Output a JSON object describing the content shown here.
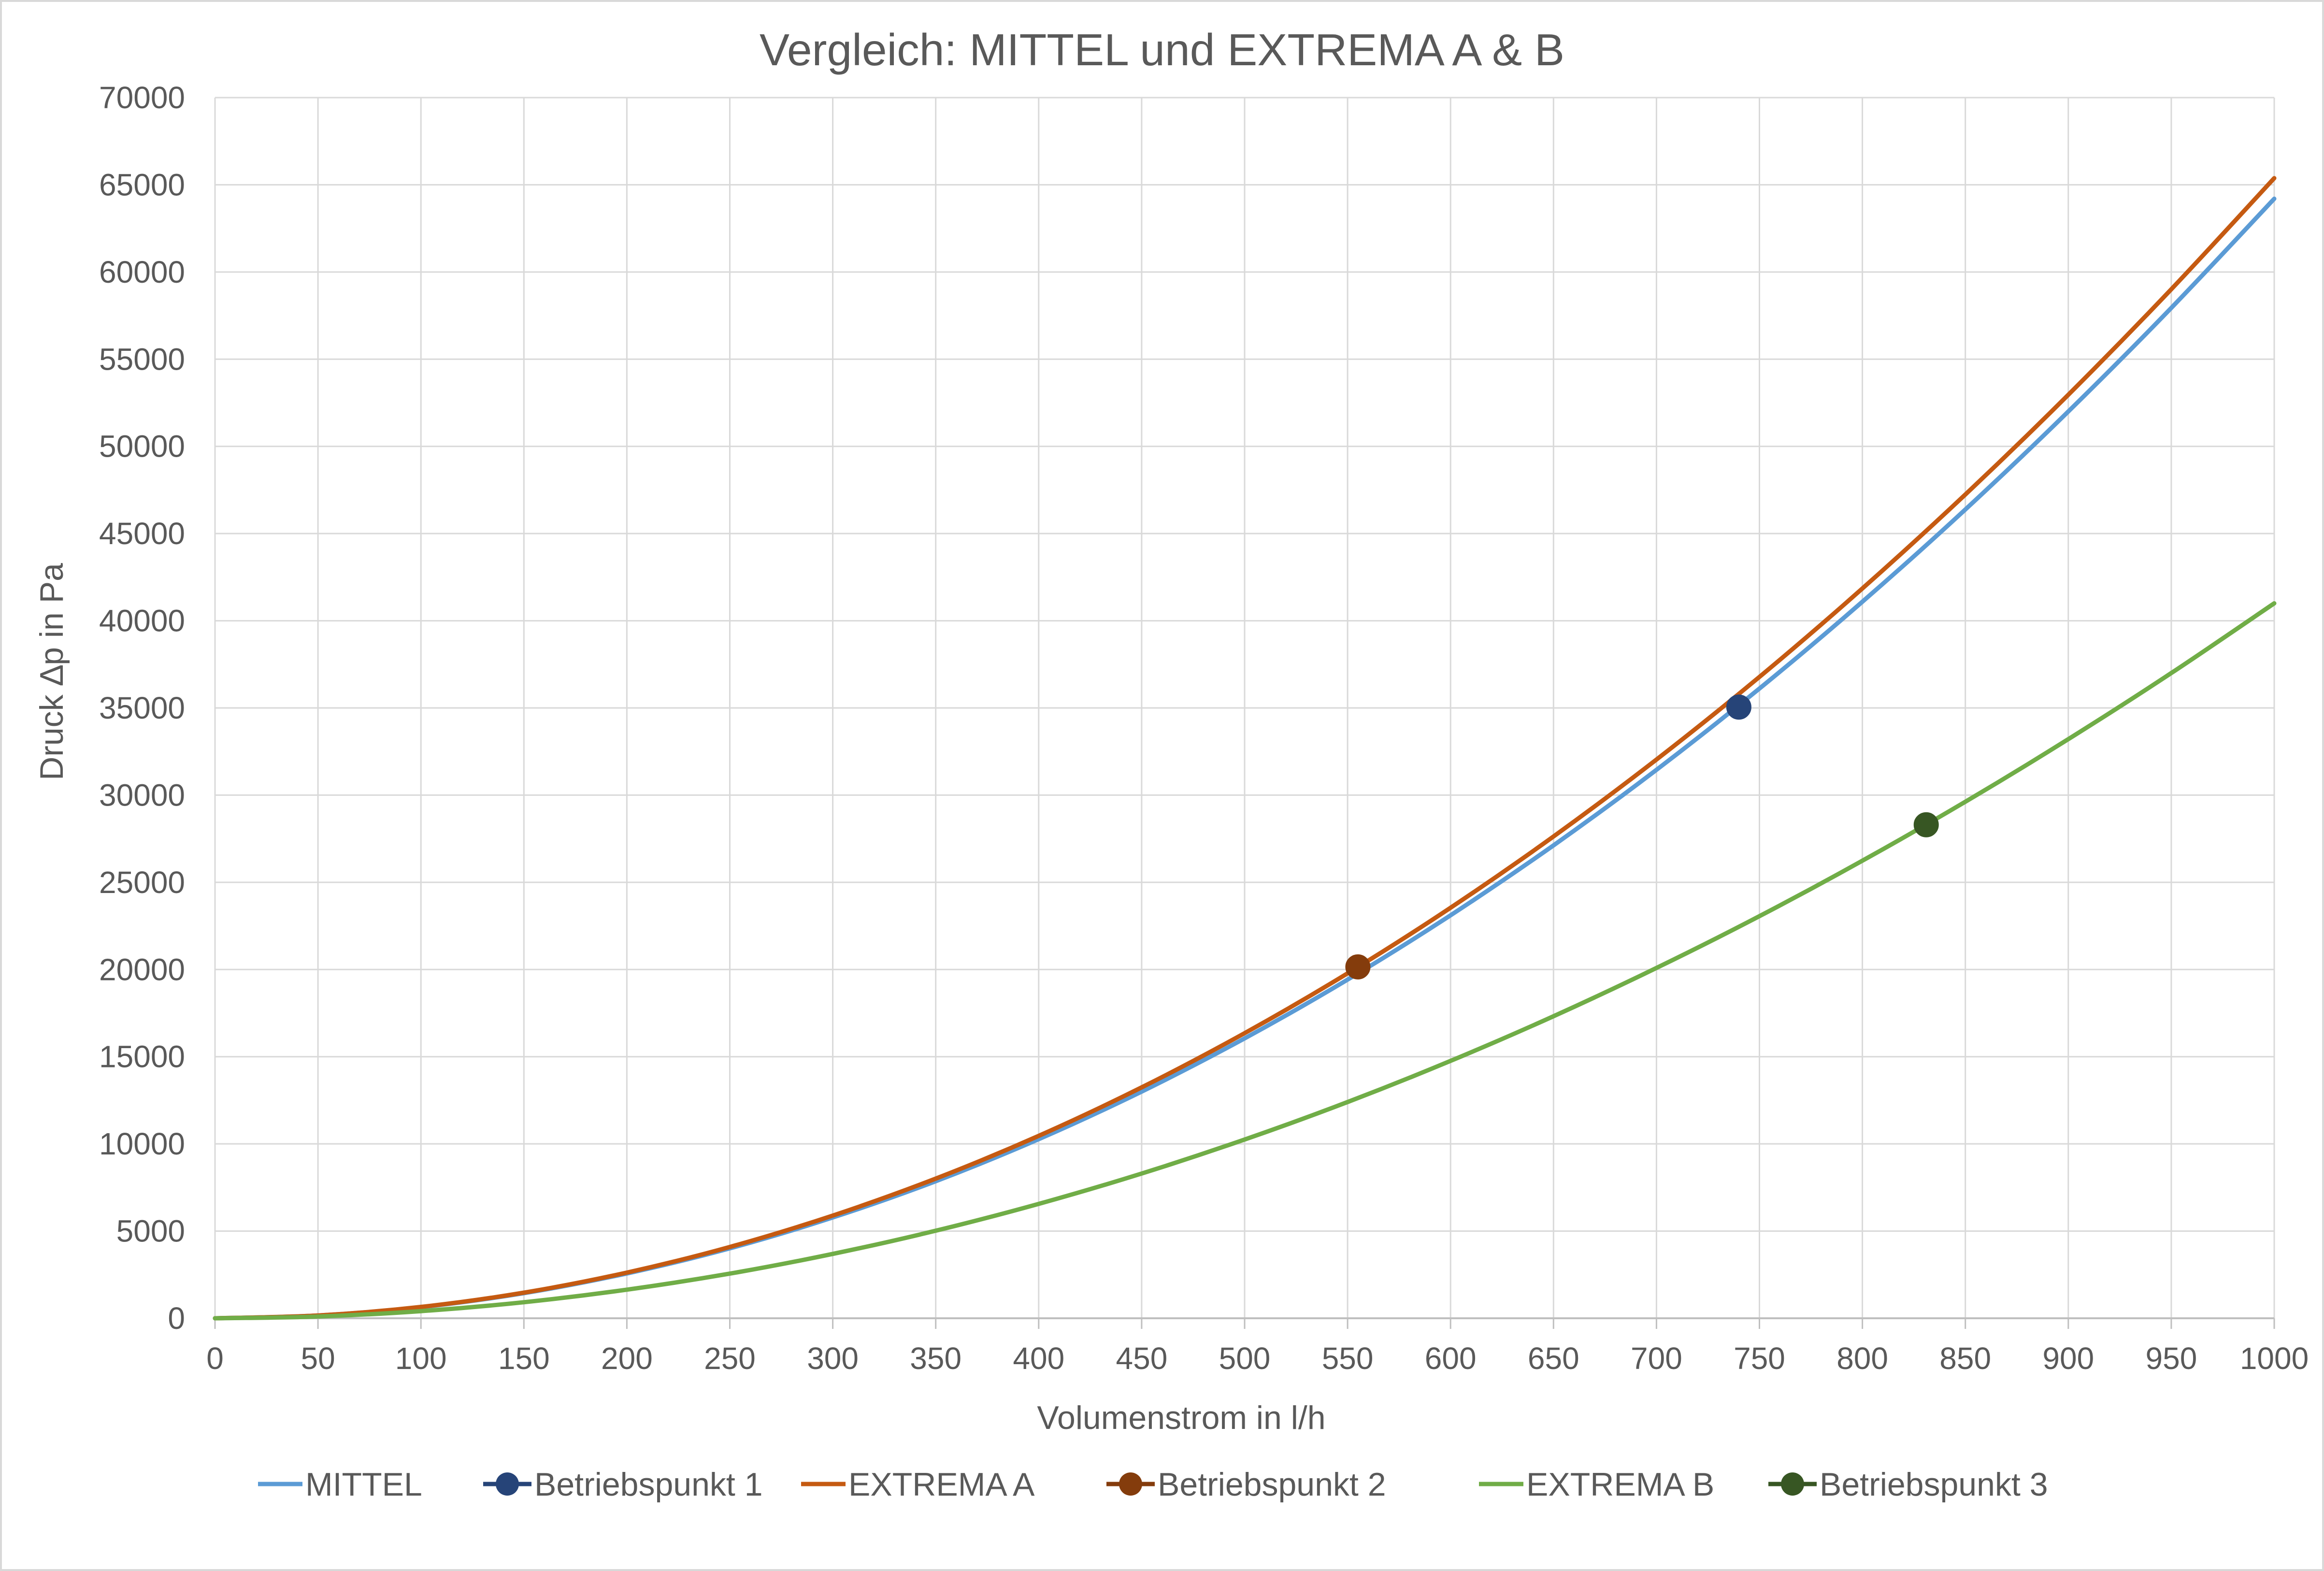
{
  "chart_data": {
    "type": "line",
    "title": "Vergleich: MITTEL und EXTREMA A & B",
    "xlabel": "Volumenstrom in l/h",
    "ylabel": "Druck ∆p in Pa",
    "xlim": [
      0,
      1000
    ],
    "ylim": [
      0,
      70000
    ],
    "xticks": [
      0,
      50,
      100,
      150,
      200,
      250,
      300,
      350,
      400,
      450,
      500,
      550,
      600,
      650,
      700,
      750,
      800,
      850,
      900,
      950,
      1000
    ],
    "yticks": [
      0,
      5000,
      10000,
      15000,
      20000,
      25000,
      30000,
      35000,
      40000,
      45000,
      50000,
      55000,
      60000,
      65000,
      70000
    ],
    "grid": true,
    "legend_position": "bottom",
    "series": [
      {
        "name": "MITTEL",
        "kind": "line",
        "color": "#5b9bd5",
        "x": [
          0,
          50,
          100,
          150,
          200,
          250,
          300,
          350,
          400,
          450,
          500,
          550,
          600,
          650,
          700,
          750,
          800,
          850,
          900,
          950,
          1000
        ],
        "y": [
          0,
          160,
          640,
          1440,
          2570,
          4010,
          5780,
          7860,
          10270,
          13000,
          16050,
          19420,
          23110,
          27120,
          31450,
          36110,
          41090,
          46380,
          52000,
          57940,
          64200
        ]
      },
      {
        "name": "Betriebspunkt 1",
        "kind": "point",
        "color": "#264478",
        "x": [
          740
        ],
        "y": [
          35050
        ]
      },
      {
        "name": "EXTREMA A",
        "kind": "line",
        "color": "#c55a11",
        "x": [
          0,
          50,
          100,
          150,
          200,
          250,
          300,
          350,
          400,
          450,
          500,
          550,
          600,
          650,
          700,
          750,
          800,
          850,
          900,
          950,
          1000
        ],
        "y": [
          0,
          160,
          650,
          1470,
          2620,
          4090,
          5890,
          8010,
          10460,
          13240,
          16350,
          19780,
          23540,
          27630,
          32040,
          36780,
          41850,
          47240,
          52960,
          59010,
          65380
        ]
      },
      {
        "name": "Betriebspunkt 2",
        "kind": "point",
        "color": "#843c0c",
        "x": [
          555
        ],
        "y": [
          20150
        ]
      },
      {
        "name": "EXTREMA B",
        "kind": "line",
        "color": "#70ad47",
        "x": [
          0,
          50,
          100,
          150,
          200,
          250,
          300,
          350,
          400,
          450,
          500,
          550,
          600,
          650,
          700,
          750,
          800,
          850,
          900,
          950,
          1000
        ],
        "y": [
          0,
          100,
          410,
          920,
          1640,
          2560,
          3690,
          5020,
          6560,
          8300,
          10250,
          12400,
          14760,
          17320,
          20090,
          23060,
          26240,
          29620,
          33210,
          37000,
          41000
        ]
      },
      {
        "name": "Betriebspunkt 3",
        "kind": "point",
        "color": "#375623",
        "x": [
          831
        ],
        "y": [
          28300
        ]
      }
    ]
  }
}
